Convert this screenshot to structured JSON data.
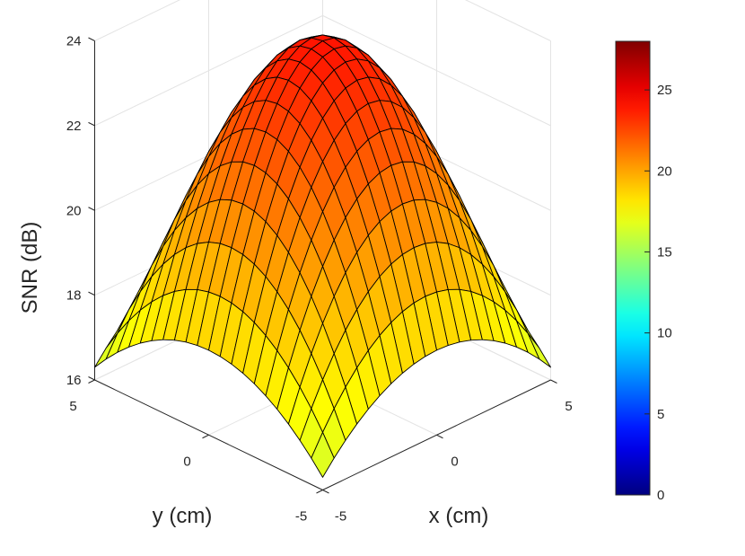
{
  "chart_data": {
    "type": "surface",
    "title": "",
    "xlabel": "x (cm)",
    "ylabel": "y (cm)",
    "zlabel": "SNR (dB)",
    "xlim": [
      -5,
      5
    ],
    "ylim": [
      -5,
      5
    ],
    "zlim": [
      16,
      24
    ],
    "x_ticks": [
      -5,
      0,
      5
    ],
    "y_ticks": [
      -5,
      0,
      5
    ],
    "z_ticks": [
      16,
      18,
      20,
      22,
      24
    ],
    "grid": true,
    "colormap": "jet",
    "colorbar": {
      "range": [
        0,
        28
      ],
      "ticks": [
        0,
        5,
        10,
        15,
        20,
        25
      ],
      "location": "right"
    },
    "surface": {
      "x": [
        -5,
        -4.5,
        -4,
        -3.5,
        -3,
        -2.5,
        -2,
        -1.5,
        -1,
        -0.5,
        0,
        0.5,
        1,
        1.5,
        2,
        2.5,
        3,
        3.5,
        4,
        4.5,
        5
      ],
      "y": [
        -5,
        -4.5,
        -4,
        -3.5,
        -3,
        -2.5,
        -2,
        -1.5,
        -1,
        -0.5,
        0,
        0.5,
        1,
        1.5,
        2,
        2.5,
        3,
        3.5,
        4,
        4.5,
        5
      ],
      "peak": 24.0,
      "center_edge": 18.0,
      "corner": 16.3
    }
  }
}
